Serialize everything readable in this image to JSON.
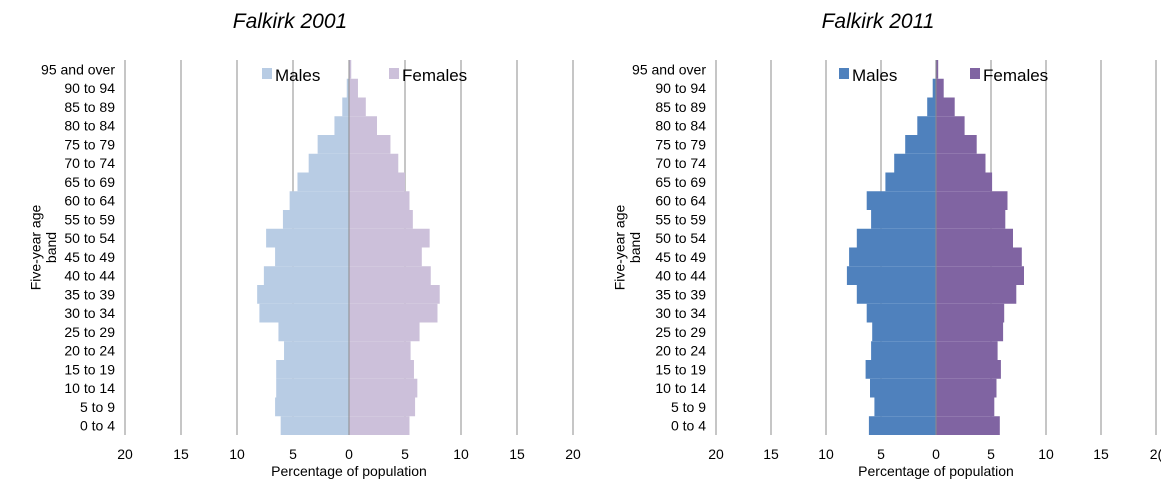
{
  "chart_data": [
    {
      "type": "bar",
      "orientation": "horizontal",
      "subtype": "population-pyramid",
      "title": "Falkirk 2001",
      "ylabel": "Five-year age band",
      "xlabel": "Percentage of population",
      "xlim": [
        -20,
        20
      ],
      "x_ticks": [
        "20",
        "15",
        "10",
        "5",
        "0",
        "5",
        "10",
        "15",
        "20"
      ],
      "grid": "vertical",
      "legend_position": "top",
      "categories": [
        "0 to 4",
        "5 to 9",
        "10 to 14",
        "15 to 19",
        "20 to 24",
        "25 to 29",
        "30 to 34",
        "35 to 39",
        "40 to 44",
        "45 to 49",
        "50 to 54",
        "55 to 59",
        "60 to 64",
        "65 to 69",
        "70 to 74",
        "75 to 79",
        "80 to 84",
        "85 to 89",
        "90 to 94",
        "95 and over"
      ],
      "series": [
        {
          "name": "Males",
          "color": "#b8cce4",
          "values": [
            6.1,
            6.6,
            6.5,
            6.5,
            5.8,
            6.3,
            8.0,
            8.2,
            7.6,
            6.6,
            7.4,
            5.9,
            5.3,
            4.6,
            3.6,
            2.8,
            1.3,
            0.6,
            0.2,
            0.03
          ]
        },
        {
          "name": "Females",
          "color": "#ccc0da",
          "values": [
            5.4,
            5.9,
            6.1,
            5.8,
            5.5,
            6.3,
            7.9,
            8.1,
            7.3,
            6.5,
            7.2,
            5.7,
            5.4,
            5.0,
            4.4,
            3.7,
            2.5,
            1.5,
            0.8,
            0.2
          ]
        }
      ]
    },
    {
      "type": "bar",
      "orientation": "horizontal",
      "subtype": "population-pyramid",
      "title": "Falkirk 2011",
      "ylabel": "Five-year age band",
      "xlabel": "Percentage of population",
      "xlim": [
        -20,
        20
      ],
      "x_ticks": [
        "20",
        "15",
        "10",
        "5",
        "0",
        "5",
        "10",
        "15",
        "2("
      ],
      "grid": "vertical",
      "legend_position": "top",
      "categories": [
        "0 to 4",
        "5 to 9",
        "10 to 14",
        "15 to 19",
        "20 to 24",
        "25 to 29",
        "30 to 34",
        "35 to 39",
        "40 to 44",
        "45 to 49",
        "50 to 54",
        "55 to 59",
        "60 to 64",
        "65 to 69",
        "70 to 74",
        "75 to 79",
        "80 to 84",
        "85 to 89",
        "90 to 94",
        "95 and over"
      ],
      "series": [
        {
          "name": "Males",
          "color": "#4f81bd",
          "values": [
            6.1,
            5.6,
            6.0,
            6.4,
            5.9,
            5.8,
            6.3,
            7.2,
            8.1,
            7.9,
            7.2,
            5.9,
            6.3,
            4.6,
            3.8,
            2.8,
            1.7,
            0.8,
            0.3,
            0.05
          ]
        },
        {
          "name": "Females",
          "color": "#8064a2",
          "values": [
            5.8,
            5.3,
            5.5,
            5.9,
            5.6,
            6.1,
            6.2,
            7.3,
            8.0,
            7.8,
            7.0,
            6.3,
            6.5,
            5.1,
            4.5,
            3.7,
            2.6,
            1.7,
            0.7,
            0.2
          ]
        }
      ]
    }
  ]
}
